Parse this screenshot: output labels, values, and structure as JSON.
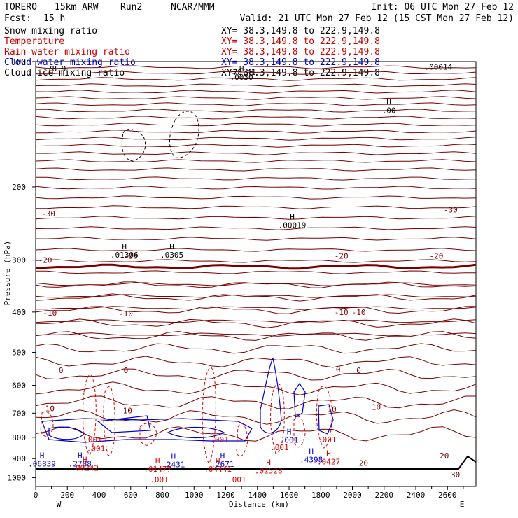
{
  "header": {
    "model": "TORERO",
    "resolution": "15km ARW",
    "run": "Run2",
    "org": "NCAR/MMM",
    "init": "Init: 06 UTC Mon 27 Feb 12",
    "fcst_label": "Fcst:",
    "fcst_value": "15 h",
    "valid": "Valid: 21 UTC Mon 27 Feb 12 (15 CST Mon 27 Feb 12)"
  },
  "fields": [
    {
      "name": "Snow mixing ratio",
      "xy": "XY=  38.3,149.8 to 222.9,149.8",
      "color": "#000000"
    },
    {
      "name": "Temperature",
      "xy": "XY=  38.3,149.8 to 222.9,149.8",
      "color": "#cc0000"
    },
    {
      "name": "Rain water mixing ratio",
      "xy": "XY=  38.3,149.8 to 222.9,149.8",
      "color": "#cc0000"
    },
    {
      "name": "Cloud water mixing ratio",
      "xy": "XY=  38.3,149.8 to 222.9,149.8",
      "color": "#0000cc"
    },
    {
      "name": "Cloud ice mixing ratio",
      "xy": "XY=  38.3,149.8 to 222.9,149.8",
      "color": "#000000"
    }
  ],
  "chart_data": {
    "type": "contour-cross-section",
    "xlabel": "Distance (km)",
    "ylabel": "Pressure (hPa)",
    "xlim": [
      0,
      2780
    ],
    "ylim": [
      1050,
      100
    ],
    "x_ticks": [
      0,
      200,
      400,
      600,
      800,
      1000,
      1200,
      1400,
      1600,
      1800,
      2000,
      2200,
      2400,
      2600
    ],
    "y_ticks": [
      100,
      200,
      300,
      400,
      500,
      600,
      700,
      800,
      900,
      1000
    ],
    "y_log": true,
    "x_endpoint_left": "W",
    "x_endpoint_right": "E",
    "colors": {
      "temperature": "#7a0000",
      "rain": "#dd0000",
      "cloud_water": "#0000cc",
      "ice": "#000000",
      "ground": "#000000"
    },
    "temperature_labels": [
      {
        "x": 80,
        "p": 232,
        "text": "-30"
      },
      {
        "x": 2620,
        "p": 227,
        "text": "-30"
      },
      {
        "x": 60,
        "p": 300,
        "text": "-20"
      },
      {
        "x": 600,
        "p": 293,
        "text": "-20"
      },
      {
        "x": 1930,
        "p": 293,
        "text": "-20"
      },
      {
        "x": 2530,
        "p": 293,
        "text": "-20"
      },
      {
        "x": 90,
        "p": 402,
        "text": "-10"
      },
      {
        "x": 570,
        "p": 403,
        "text": "-10"
      },
      {
        "x": 1930,
        "p": 400,
        "text": "-10"
      },
      {
        "x": 2040,
        "p": 400,
        "text": "-10"
      },
      {
        "x": 160,
        "p": 552,
        "text": "0"
      },
      {
        "x": 570,
        "p": 552,
        "text": "0"
      },
      {
        "x": 1910,
        "p": 550,
        "text": "0"
      },
      {
        "x": 2040,
        "p": 552,
        "text": "0"
      },
      {
        "x": 90,
        "p": 682,
        "text": "10"
      },
      {
        "x": 580,
        "p": 690,
        "text": "10"
      },
      {
        "x": 1870,
        "p": 685,
        "text": "10"
      },
      {
        "x": 2150,
        "p": 677,
        "text": "10"
      },
      {
        "x": 2580,
        "p": 885,
        "text": "20"
      },
      {
        "x": 2070,
        "p": 922,
        "text": "20"
      },
      {
        "x": 2650,
        "p": 983,
        "text": "30"
      }
    ],
    "extrema_labels": [
      {
        "x": 560,
        "p": 289,
        "letter": "H",
        "value": ".01306",
        "color": "#000000"
      },
      {
        "x": 860,
        "p": 289,
        "letter": "H",
        "value": ".0305",
        "color": "#000000"
      },
      {
        "x": 1620,
        "p": 245,
        "letter": "H",
        "value": ".00019",
        "color": "#000000"
      },
      {
        "x": 2230,
        "p": 130,
        "letter": "H",
        "value": ".00",
        "color": "#000000"
      },
      {
        "x": 1300,
        "p": 108,
        "letter": "H",
        "value": ".0030",
        "color": "#000000"
      },
      {
        "x": 280,
        "p": 918,
        "letter": "H",
        "value": ".2788",
        "color": "#0000cc"
      },
      {
        "x": 870,
        "p": 922,
        "letter": "H",
        "value": ".2431",
        "color": "#0000cc"
      },
      {
        "x": 1180,
        "p": 920,
        "letter": "H",
        "value": ".2671",
        "color": "#0000cc"
      },
      {
        "x": 1740,
        "p": 898,
        "letter": "H",
        "value": ".4398",
        "color": "#0000cc"
      },
      {
        "x": 40,
        "p": 918,
        "letter": "H",
        "value": ".06839",
        "color": "#0000cc"
      },
      {
        "x": 1600,
        "p": 806,
        "letter": "H",
        "value": ".001",
        "color": "#0000cc"
      },
      {
        "x": 310,
        "p": 940,
        "letter": "H",
        "value": ".00242",
        "color": "#dd0000"
      },
      {
        "x": 770,
        "p": 945,
        "letter": "H",
        "value": ".01477",
        "color": "#dd0000"
      },
      {
        "x": 1150,
        "p": 945,
        "letter": "H",
        "value": ".04441",
        "color": "#dd0000"
      },
      {
        "x": 1470,
        "p": 955,
        "letter": "H",
        "value": ".02528",
        "color": "#dd0000"
      },
      {
        "x": 1850,
        "p": 908,
        "letter": "H",
        "value": ".0427",
        "color": "#dd0000"
      }
    ],
    "rain_labels": [
      {
        "x": 360,
        "p": 810,
        "text": ".001"
      },
      {
        "x": 380,
        "p": 850,
        "text": ".001"
      },
      {
        "x": 1160,
        "p": 810,
        "text": ".001"
      },
      {
        "x": 1540,
        "p": 845,
        "text": ".001"
      },
      {
        "x": 1840,
        "p": 810,
        "text": ".001"
      },
      {
        "x": 780,
        "p": 1010,
        "text": ".001"
      },
      {
        "x": 1270,
        "p": 1010,
        "text": ".001"
      }
    ],
    "top_labels": [
      {
        "x": 10,
        "p": 104,
        "text": "-78.9"
      },
      {
        "x": 1180,
        "p": 106,
        "text": "-78.41"
      },
      {
        "x": 2420,
        "p": 103,
        "text": ".00014"
      }
    ]
  }
}
